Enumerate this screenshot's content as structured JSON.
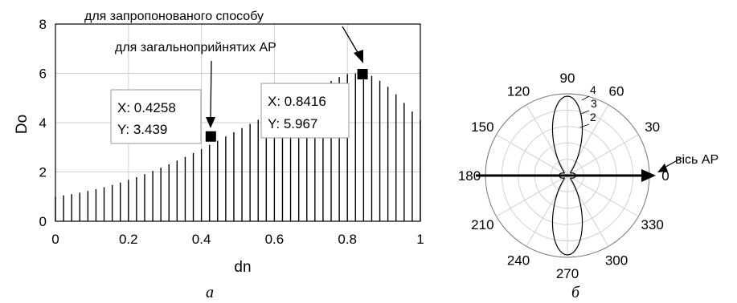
{
  "chart_data": [
    {
      "type": "bar",
      "xlabel": "dn",
      "ylabel": "Do",
      "xlim": [
        0,
        1
      ],
      "ylim": [
        0,
        8
      ],
      "xticks": [
        "0",
        "0.2",
        "0.4",
        "0.6",
        "0.8",
        "1"
      ],
      "yticks": [
        "0",
        "2",
        "4",
        "6",
        "8"
      ],
      "grid": true,
      "x": [
        0,
        0.0222,
        0.0444,
        0.0667,
        0.0889,
        0.1111,
        0.1333,
        0.1556,
        0.1778,
        0.2,
        0.2222,
        0.2444,
        0.2667,
        0.2889,
        0.3111,
        0.3333,
        0.3556,
        0.3778,
        0.4,
        0.4222,
        0.4444,
        0.4667,
        0.4889,
        0.5111,
        0.5333,
        0.5556,
        0.5778,
        0.6,
        0.6222,
        0.6444,
        0.6667,
        0.6889,
        0.7111,
        0.7333,
        0.7556,
        0.7778,
        0.8,
        0.8222,
        0.8444,
        0.8667,
        0.8889,
        0.9111,
        0.9333,
        0.9556,
        0.9778,
        1.0
      ],
      "values": [
        1.0,
        1.05,
        1.1,
        1.16,
        1.23,
        1.3,
        1.38,
        1.47,
        1.57,
        1.68,
        1.79,
        1.91,
        2.04,
        2.17,
        2.31,
        2.46,
        2.61,
        2.77,
        2.93,
        3.1,
        3.27,
        3.44,
        3.61,
        3.78,
        3.95,
        4.12,
        4.29,
        4.46,
        4.63,
        4.8,
        4.98,
        5.16,
        5.34,
        5.52,
        5.69,
        5.85,
        5.97,
        6.0,
        6.0,
        5.9,
        5.7,
        5.45,
        5.15,
        4.8,
        4.45,
        4.1
      ],
      "markers": [
        {
          "x": 0.4258,
          "y": 3.439,
          "x_label": "X: 0.4258",
          "y_label": "Y: 3.439",
          "annotation": "для загальноприйнятих АР"
        },
        {
          "x": 0.8416,
          "y": 5.967,
          "x_label": "X: 0.8416",
          "y_label": "Y: 5.967",
          "annotation": "для запропонованого способу"
        }
      ],
      "caption": "а"
    },
    {
      "type": "polar",
      "angle_ticks": [
        "0",
        "30",
        "60",
        "90",
        "120",
        "150",
        "180",
        "210",
        "240",
        "270",
        "300",
        "330"
      ],
      "curve_labels": [
        "2",
        "3",
        "4"
      ],
      "annotation": "вісь АР",
      "caption": "б"
    }
  ]
}
